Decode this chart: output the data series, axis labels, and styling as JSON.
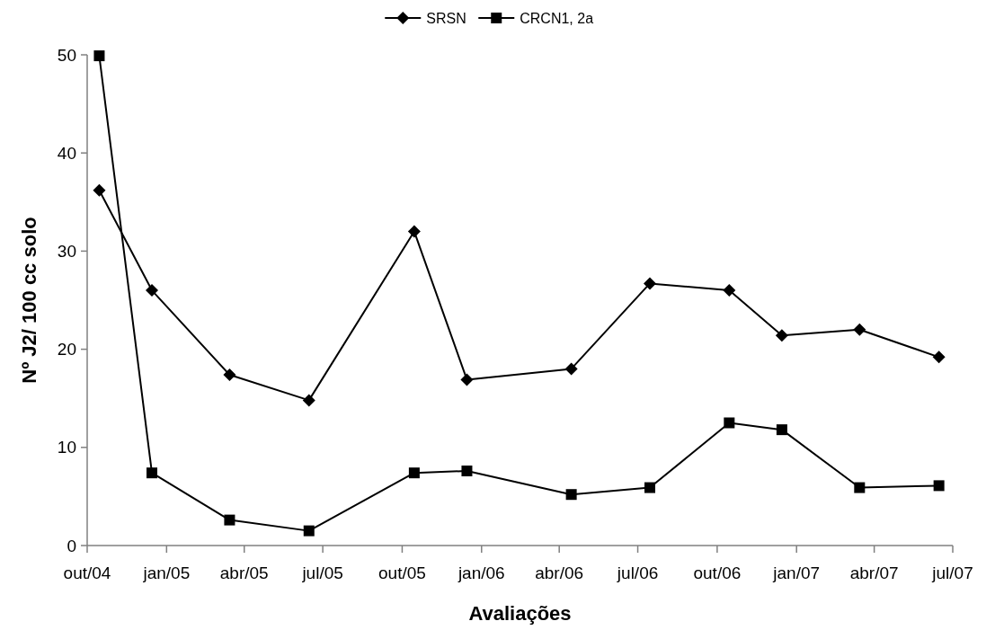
{
  "chart_data": {
    "type": "line",
    "xlabel": "Avaliações",
    "ylabel": "Nº J2/ 100 cc solo",
    "x": [
      "2004-10-15",
      "2004-12-15",
      "2005-03-15",
      "2005-06-15",
      "2005-10-15",
      "2005-12-15",
      "2006-04-15",
      "2006-07-15",
      "2006-10-15",
      "2006-12-15",
      "2007-03-15",
      "2007-06-15"
    ],
    "series": [
      {
        "name": "SRSN",
        "color": "#000000",
        "marker": "diamond",
        "values": [
          36.2,
          26.0,
          17.4,
          14.8,
          32.0,
          16.9,
          18.0,
          26.7,
          26.0,
          21.4,
          22.0,
          19.2
        ]
      },
      {
        "name": "CRCN1, 2a",
        "color": "#000000",
        "marker": "square",
        "values": [
          49.9,
          7.4,
          2.6,
          1.5,
          7.4,
          7.6,
          5.2,
          5.9,
          12.5,
          11.8,
          5.9,
          6.1
        ]
      }
    ],
    "xlim": [
      "2004-10-01",
      "2007-07-01"
    ],
    "xticks": [
      {
        "value": "2004-10-01",
        "label": "out/04"
      },
      {
        "value": "2005-01-01",
        "label": "jan/05"
      },
      {
        "value": "2005-04-01",
        "label": "abr/05"
      },
      {
        "value": "2005-07-01",
        "label": "jul/05"
      },
      {
        "value": "2005-10-01",
        "label": "out/05"
      },
      {
        "value": "2006-01-01",
        "label": "jan/06"
      },
      {
        "value": "2006-04-01",
        "label": "abr/06"
      },
      {
        "value": "2006-07-01",
        "label": "jul/06"
      },
      {
        "value": "2006-10-01",
        "label": "out/06"
      },
      {
        "value": "2007-01-01",
        "label": "jan/07"
      },
      {
        "value": "2007-04-01",
        "label": "abr/07"
      },
      {
        "value": "2007-07-01",
        "label": "jul/07"
      }
    ],
    "ylim": [
      0,
      50
    ],
    "yticks": [
      0,
      10,
      20,
      30,
      40,
      50
    ],
    "grid": false,
    "legend": "top",
    "line_style": "solid"
  }
}
